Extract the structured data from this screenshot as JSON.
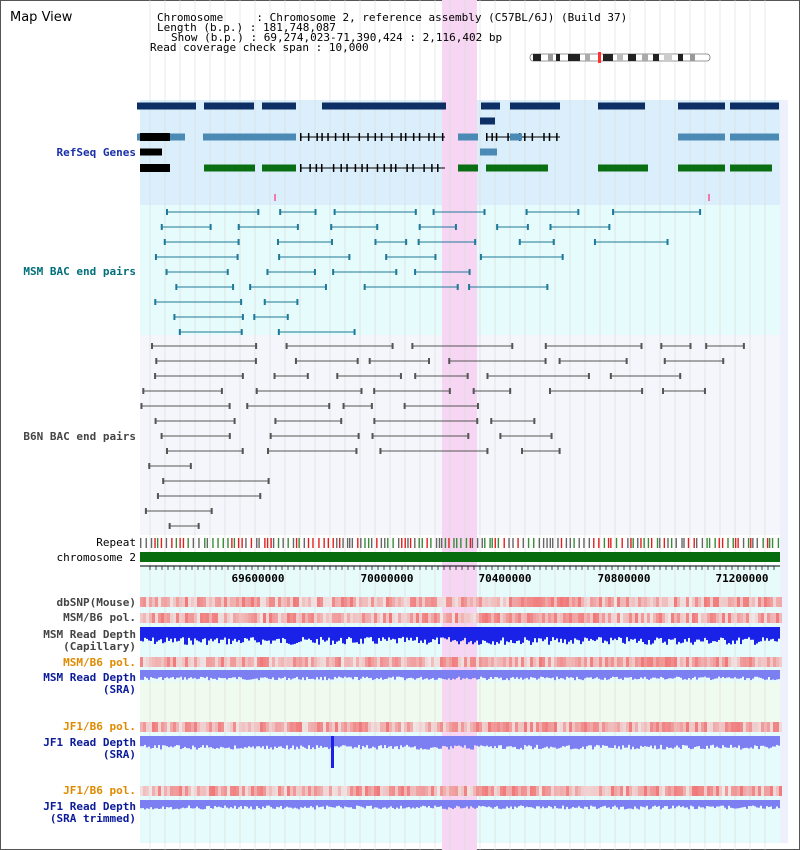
{
  "header": {
    "title": "Map View"
  },
  "info": {
    "chromosome_key": "Chromosome",
    "chromosome_value": "Chromosome 2, reference assembly (C57BL/6J) (Build 37)",
    "length_key": "Length (b.p.)",
    "length_value": "181,748,087",
    "show_key": "Show (b.p.)",
    "show_value": "69,274,023-71,390,424 : 2,116,402 bp",
    "span_key": "Read coverage check span",
    "span_value": "10,000"
  },
  "tracks": {
    "refseq": "RefSeq Genes",
    "msm_bac": "MSM BAC end pairs",
    "b6n_bac": "B6N BAC end pairs",
    "repeat": "Repeat",
    "chromosome": "chromosome 2",
    "dbsnp": "dbSNP(Mouse)",
    "msm_b6_pol": "MSM/B6 pol.",
    "msm_depth_cap_1": "MSM Read Depth",
    "msm_depth_cap_2": "(Capillary)",
    "msm_b6_pol_2": "MSM/B6 pol.",
    "msm_depth_sra_1": "MSM Read Depth",
    "msm_depth_sra_2": "(SRA)",
    "jf1_b6_pol": "JF1/B6 pol.",
    "jf1_depth_sra_1": "JF1 Read Depth",
    "jf1_depth_sra_2": "(SRA)",
    "jf1_b6_pol_2": "JF1/B6 pol.",
    "jf1_depth_trim_1": "JF1 Read Depth",
    "jf1_depth_trim_2": "(SRA trimmed)"
  },
  "axis": {
    "ticks": [
      "69600000",
      "70000000",
      "70400000",
      "70800000",
      "71200000"
    ]
  },
  "colors": {
    "refseq_dark": "#0d2f66",
    "refseq_mid": "#4a8ab5",
    "refseq_green": "#0a6e12",
    "msm_line": "#1f7a9a",
    "b6n_line": "#555555",
    "highlight": "#f6d6f3",
    "depth_blue": "#1a22e8",
    "depth_light": "#7b7ff2"
  }
}
